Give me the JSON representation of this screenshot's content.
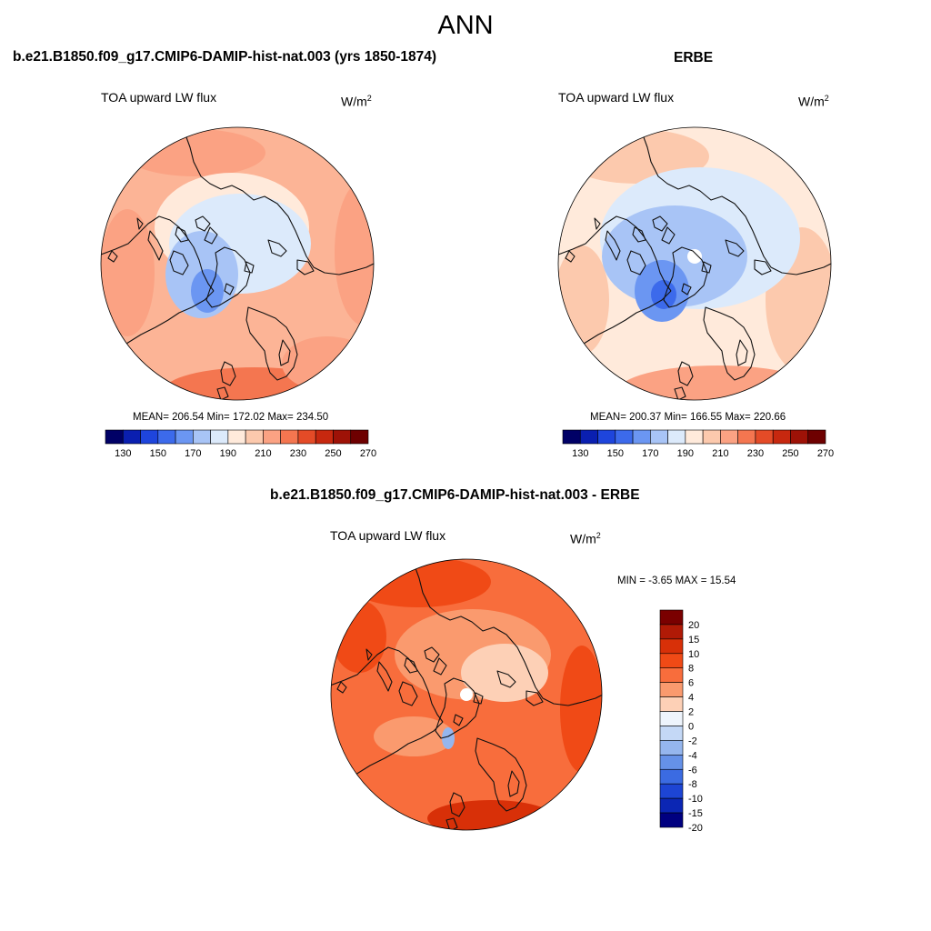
{
  "figure": {
    "title": "ANN"
  },
  "panels": {
    "model": {
      "title": "b.e21.B1850.f09_g17.CMIP6-DAMIP-hist-nat.003 (yrs 1850-1874)",
      "variable": "TOA upward LW flux",
      "units": "W/m",
      "units_sup": "2",
      "stats": "MEAN= 206.54  Min= 172.02  Max= 234.50"
    },
    "obs": {
      "title": "ERBE",
      "variable": "TOA upward LW flux",
      "units": "W/m",
      "units_sup": "2",
      "stats": "MEAN= 200.37  Min= 166.55  Max= 220.66"
    },
    "diff": {
      "title": "b.e21.B1850.f09_g17.CMIP6-DAMIP-hist-nat.003 - ERBE",
      "variable": "TOA upward LW flux",
      "units": "W/m",
      "units_sup": "2",
      "stats": "MIN =  -3.65 MAX =  15.54"
    }
  },
  "chart_data": [
    {
      "type": "heatmap",
      "projection": "north-polar-stereographic",
      "title": "b.e21.B1850.f09_g17.CMIP6-DAMIP-hist-nat.003 (yrs 1850-1874)",
      "variable": "TOA upward LW flux",
      "units": "W/m2",
      "mean": 206.54,
      "min": 172.02,
      "max": 234.5,
      "colorbar_levels": [
        130,
        140,
        150,
        160,
        170,
        180,
        190,
        200,
        210,
        220,
        230,
        240,
        250,
        260,
        270
      ],
      "colorbar_tick_labels": [
        "130",
        "150",
        "170",
        "190",
        "210",
        "230",
        "250",
        "270"
      ],
      "colorbar_orientation": "horizontal"
    },
    {
      "type": "heatmap",
      "projection": "north-polar-stereographic",
      "title": "ERBE",
      "variable": "TOA upward LW flux",
      "units": "W/m2",
      "mean": 200.37,
      "min": 166.55,
      "max": 220.66,
      "colorbar_levels": [
        130,
        140,
        150,
        160,
        170,
        180,
        190,
        200,
        210,
        220,
        230,
        240,
        250,
        260,
        270
      ],
      "colorbar_tick_labels": [
        "130",
        "150",
        "170",
        "190",
        "210",
        "230",
        "250",
        "270"
      ],
      "colorbar_orientation": "horizontal"
    },
    {
      "type": "heatmap",
      "projection": "north-polar-stereographic",
      "title": "b.e21.B1850.f09_g17.CMIP6-DAMIP-hist-nat.003 - ERBE",
      "variable": "TOA upward LW flux",
      "units": "W/m2",
      "min": -3.65,
      "max": 15.54,
      "colorbar_levels": [
        20,
        15,
        10,
        8,
        6,
        4,
        2,
        0,
        -2,
        -4,
        -6,
        -8,
        -10,
        -15,
        -20
      ],
      "colorbar_tick_labels": [
        "20",
        "15",
        "10",
        "8",
        "6",
        "4",
        "2",
        "0",
        "-2",
        "-4",
        "-6",
        "-8",
        "-10",
        "-15",
        "-20"
      ],
      "colorbar_orientation": "vertical"
    }
  ],
  "colors": {
    "abs_cmap": [
      "#000066",
      "#0a1fb0",
      "#1e45dc",
      "#3c6aeb",
      "#6b96f2",
      "#a8c4f6",
      "#dceafb",
      "#ffeadb",
      "#fcc9ad",
      "#fba283",
      "#f47650",
      "#e44b27",
      "#c7280f",
      "#9e1207",
      "#6e0000"
    ],
    "diff_cmap": [
      "#7a0000",
      "#b01a06",
      "#d83008",
      "#f04a16",
      "#f86d3c",
      "#fa9a6e",
      "#fdd0b6",
      "#eef4fc",
      "#c4d8f6",
      "#95b6ee",
      "#6591e8",
      "#3b6be2",
      "#1d45d4",
      "#0b26b4",
      "#000080"
    ]
  }
}
